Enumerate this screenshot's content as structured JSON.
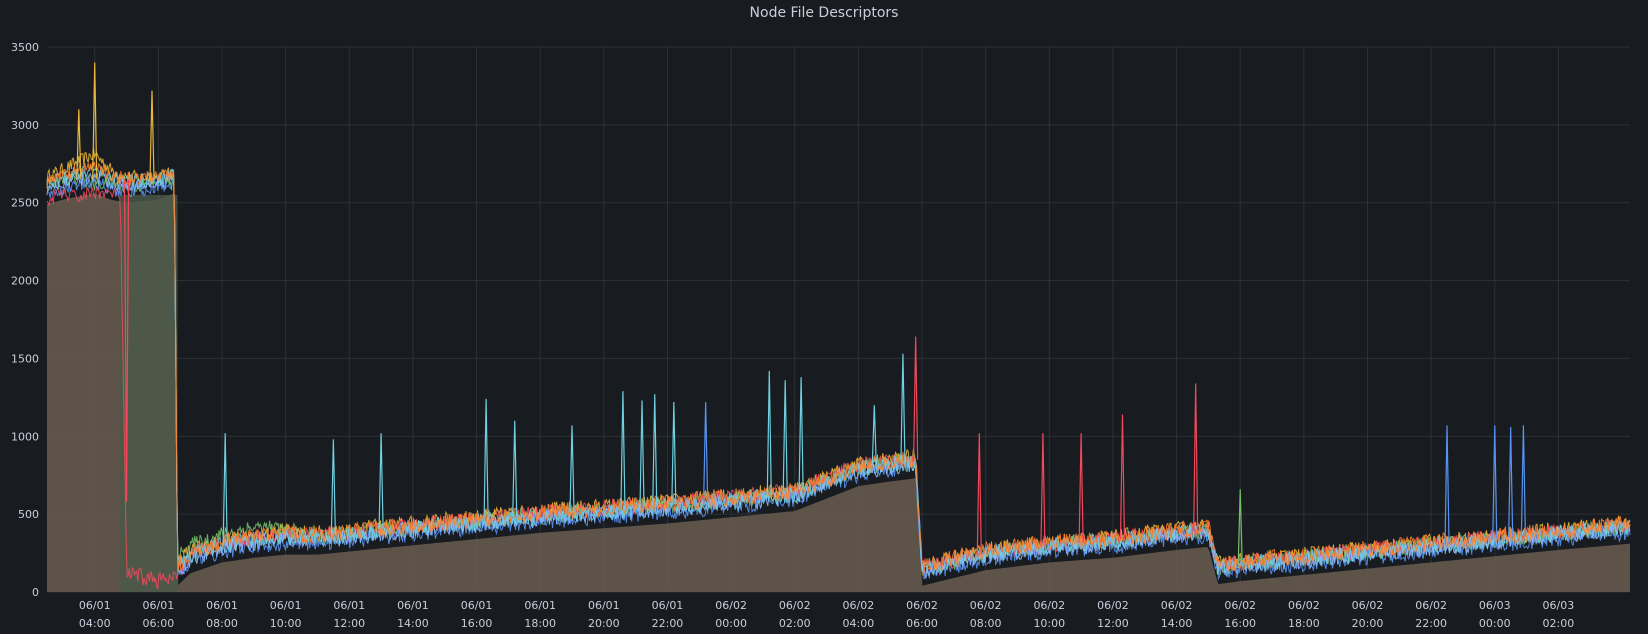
{
  "panel": {
    "title": "Node File Descriptors"
  },
  "chart_data": {
    "type": "line",
    "title": "Node File Descriptors",
    "xlabel": "",
    "ylabel": "",
    "ylim": [
      0,
      3500
    ],
    "y_ticks": [
      0,
      500,
      1000,
      1500,
      2000,
      2500,
      3000,
      3500
    ],
    "x_range_hours": [
      26.5,
      76.25
    ],
    "x_ticks": [
      {
        "hour": 28,
        "date": "06/01",
        "time": "04:00"
      },
      {
        "hour": 30,
        "date": "06/01",
        "time": "06:00"
      },
      {
        "hour": 32,
        "date": "06/01",
        "time": "08:00"
      },
      {
        "hour": 34,
        "date": "06/01",
        "time": "10:00"
      },
      {
        "hour": 36,
        "date": "06/01",
        "time": "12:00"
      },
      {
        "hour": 38,
        "date": "06/01",
        "time": "14:00"
      },
      {
        "hour": 40,
        "date": "06/01",
        "time": "16:00"
      },
      {
        "hour": 42,
        "date": "06/01",
        "time": "18:00"
      },
      {
        "hour": 44,
        "date": "06/01",
        "time": "20:00"
      },
      {
        "hour": 46,
        "date": "06/01",
        "time": "22:00"
      },
      {
        "hour": 48,
        "date": "06/02",
        "time": "00:00"
      },
      {
        "hour": 50,
        "date": "06/02",
        "time": "02:00"
      },
      {
        "hour": 52,
        "date": "06/02",
        "time": "04:00"
      },
      {
        "hour": 54,
        "date": "06/02",
        "time": "06:00"
      },
      {
        "hour": 56,
        "date": "06/02",
        "time": "08:00"
      },
      {
        "hour": 58,
        "date": "06/02",
        "time": "10:00"
      },
      {
        "hour": 60,
        "date": "06/02",
        "time": "12:00"
      },
      {
        "hour": 62,
        "date": "06/02",
        "time": "14:00"
      },
      {
        "hour": 64,
        "date": "06/02",
        "time": "16:00"
      },
      {
        "hour": 66,
        "date": "06/02",
        "time": "18:00"
      },
      {
        "hour": 68,
        "date": "06/02",
        "time": "20:00"
      },
      {
        "hour": 70,
        "date": "06/02",
        "time": "22:00"
      },
      {
        "hour": 72,
        "date": "06/03",
        "time": "00:00"
      },
      {
        "hour": 74,
        "date": "06/03",
        "time": "02:00"
      }
    ],
    "grid": true,
    "legend": "none",
    "colors": {
      "background": "#181b1f",
      "grid": "#2c3235",
      "fill": "#6a5d51",
      "fill_green": "#4b5a48"
    },
    "series": [
      {
        "color": "#eab839",
        "x": [
          26.5,
          27.0,
          27.5,
          28.0,
          28.5,
          29.0,
          29.5,
          30.0,
          30.5,
          30.6,
          31.0,
          32.0,
          33.0,
          34.0,
          35.0,
          36.0,
          38.0,
          40.0,
          42.0,
          44.0,
          46.0,
          48.0,
          50.0,
          51.0,
          52.0,
          53.0,
          53.8,
          54.0,
          55.0,
          56.0,
          58.0,
          60.0,
          62.0,
          63.0,
          63.3,
          64.0,
          66.0,
          68.0,
          70.0,
          72.0,
          74.0,
          76.25
        ],
        "y": [
          2650,
          2700,
          2750,
          2800,
          2700,
          2650,
          2650,
          2650,
          2680,
          180,
          250,
          300,
          320,
          380,
          360,
          380,
          420,
          460,
          500,
          530,
          560,
          600,
          640,
          720,
          800,
          830,
          850,
          150,
          200,
          250,
          300,
          330,
          380,
          400,
          160,
          180,
          220,
          260,
          300,
          340,
          380,
          420
        ]
      },
      {
        "color": "#73bf69",
        "x": [
          26.5,
          27.0,
          27.5,
          28.0,
          28.5,
          29.0,
          29.5,
          30.0,
          30.5,
          30.6,
          31.0,
          32.0,
          33.0,
          34.0,
          35.0,
          36.0,
          38.0,
          40.0,
          42.0,
          44.0,
          46.0,
          48.0,
          50.0,
          51.0,
          52.0,
          53.0,
          53.8,
          54.0,
          55.0,
          56.0,
          58.0,
          60.0,
          62.0,
          63.0,
          63.3,
          64.0,
          66.0,
          68.0,
          70.0,
          72.0,
          74.0,
          76.25
        ],
        "y": [
          2600,
          2620,
          2650,
          2600,
          2620,
          2580,
          2600,
          2620,
          2600,
          200,
          280,
          350,
          400,
          380,
          330,
          360,
          400,
          440,
          480,
          510,
          540,
          580,
          620,
          700,
          780,
          810,
          830,
          130,
          180,
          230,
          280,
          310,
          360,
          380,
          140,
          160,
          200,
          240,
          280,
          320,
          360,
          400
        ]
      },
      {
        "color": "#f2495c",
        "x": [
          26.5,
          27.0,
          27.5,
          28.0,
          28.5,
          28.8,
          29.0,
          29.5,
          30.0,
          30.5,
          31.0,
          32.0,
          33.0,
          34.0,
          35.0,
          36.0,
          38.0,
          40.0,
          42.0,
          44.0,
          46.0,
          48.0,
          50.0,
          51.0,
          52.0,
          53.0,
          53.8,
          54.0,
          55.0,
          56.0,
          58.0,
          60.0,
          62.0,
          63.0,
          63.3,
          64.0,
          66.0,
          68.0,
          70.0,
          72.0,
          74.0,
          76.25
        ],
        "y": [
          2500,
          2550,
          2520,
          2560,
          2540,
          2550,
          100,
          80,
          60,
          60,
          220,
          300,
          330,
          350,
          340,
          370,
          410,
          450,
          490,
          520,
          550,
          590,
          630,
          710,
          790,
          820,
          840,
          140,
          190,
          240,
          290,
          320,
          370,
          390,
          150,
          170,
          210,
          250,
          290,
          330,
          370,
          410
        ]
      },
      {
        "color": "#5794f2",
        "x": [
          26.5,
          27.0,
          27.5,
          28.0,
          28.5,
          29.0,
          29.5,
          30.0,
          30.5,
          30.6,
          31.0,
          32.0,
          33.0,
          34.0,
          35.0,
          36.0,
          38.0,
          40.0,
          42.0,
          44.0,
          46.0,
          48.0,
          50.0,
          51.0,
          52.0,
          53.0,
          53.8,
          54.0,
          55.0,
          56.0,
          58.0,
          60.0,
          62.0,
          63.0,
          63.3,
          64.0,
          66.0,
          68.0,
          70.0,
          72.0,
          74.0,
          76.25
        ],
        "y": [
          2550,
          2580,
          2600,
          2620,
          2580,
          2560,
          2570,
          2580,
          2620,
          100,
          180,
          250,
          280,
          300,
          300,
          320,
          360,
          400,
          440,
          470,
          500,
          540,
          580,
          660,
          740,
          770,
          790,
          100,
          150,
          200,
          250,
          280,
          330,
          350,
          110,
          130,
          170,
          210,
          250,
          290,
          330,
          370
        ]
      },
      {
        "color": "#8ab8ff",
        "x": [
          26.5,
          27.0,
          27.5,
          28.0,
          28.5,
          29.0,
          29.5,
          30.0,
          30.5,
          30.6,
          31.0,
          32.0,
          33.0,
          34.0,
          35.0,
          36.0,
          38.0,
          40.0,
          42.0,
          44.0,
          46.0,
          48.0,
          50.0,
          51.0,
          52.0,
          53.0,
          53.8,
          54.0,
          55.0,
          56.0,
          58.0,
          60.0,
          62.0,
          63.0,
          63.3,
          64.0,
          66.0,
          68.0,
          70.0,
          72.0,
          74.0,
          76.25
        ],
        "y": [
          2580,
          2620,
          2640,
          2660,
          2620,
          2600,
          2610,
          2620,
          2650,
          120,
          200,
          270,
          300,
          320,
          320,
          340,
          380,
          420,
          460,
          490,
          520,
          560,
          600,
          680,
          760,
          790,
          810,
          120,
          170,
          220,
          270,
          300,
          350,
          370,
          130,
          150,
          190,
          230,
          270,
          310,
          350,
          390
        ]
      },
      {
        "color": "#6ed0e0",
        "x": [
          26.5,
          27.0,
          27.5,
          28.0,
          28.5,
          29.0,
          29.5,
          30.0,
          30.5,
          30.6,
          31.0,
          32.0,
          33.0,
          34.0,
          35.0,
          36.0,
          38.0,
          40.0,
          42.0,
          44.0,
          46.0,
          48.0,
          50.0,
          51.0,
          52.0,
          53.0,
          53.8,
          54.0,
          55.0,
          56.0,
          58.0,
          60.0,
          62.0,
          63.0,
          63.3,
          64.0,
          66.0,
          68.0,
          70.0,
          72.0,
          74.0,
          76.25
        ],
        "y": [
          2600,
          2650,
          2680,
          2700,
          2650,
          2620,
          2630,
          2640,
          2660,
          150,
          220,
          290,
          320,
          340,
          330,
          350,
          390,
          430,
          470,
          500,
          530,
          570,
          610,
          690,
          770,
          800,
          820,
          130,
          180,
          230,
          280,
          310,
          360,
          380,
          140,
          160,
          200,
          240,
          280,
          320,
          360,
          400
        ]
      },
      {
        "color": "#ff7f2a",
        "x": [
          26.5,
          27.0,
          27.5,
          28.0,
          28.5,
          29.0,
          29.5,
          30.0,
          30.5,
          30.6,
          31.0,
          32.0,
          33.0,
          34.0,
          35.0,
          36.0,
          38.0,
          40.0,
          42.0,
          44.0,
          46.0,
          48.0,
          50.0,
          51.0,
          52.0,
          53.0,
          53.8,
          54.0,
          55.0,
          56.0,
          58.0,
          60.0,
          62.0,
          63.0,
          63.3,
          64.0,
          66.0,
          68.0,
          70.0,
          72.0,
          74.0,
          76.25
        ],
        "y": [
          2620,
          2660,
          2700,
          2720,
          2660,
          2640,
          2640,
          2650,
          2670,
          160,
          240,
          310,
          340,
          360,
          350,
          370,
          410,
          450,
          490,
          520,
          550,
          590,
          630,
          710,
          790,
          820,
          840,
          150,
          200,
          250,
          300,
          330,
          380,
          400,
          160,
          180,
          220,
          260,
          300,
          340,
          380,
          420
        ]
      }
    ],
    "annotations": [
      {
        "x": 28.0,
        "y": 3400,
        "color": "#eab839"
      },
      {
        "x": 29.8,
        "y": 3220,
        "color": "#eab839"
      },
      {
        "x": 27.5,
        "y": 3100,
        "color": "#eab839"
      },
      {
        "x": 29.0,
        "y": 580,
        "color": "#f2495c"
      },
      {
        "x": 32.1,
        "y": 1020,
        "color": "#6ed0e0"
      },
      {
        "x": 35.5,
        "y": 980,
        "color": "#6ed0e0"
      },
      {
        "x": 37.0,
        "y": 1020,
        "color": "#6ed0e0"
      },
      {
        "x": 40.3,
        "y": 1240,
        "color": "#6ed0e0"
      },
      {
        "x": 41.2,
        "y": 1100,
        "color": "#6ed0e0"
      },
      {
        "x": 43.0,
        "y": 1070,
        "color": "#6ed0e0"
      },
      {
        "x": 44.6,
        "y": 1290,
        "color": "#6ed0e0"
      },
      {
        "x": 45.2,
        "y": 1230,
        "color": "#6ed0e0"
      },
      {
        "x": 45.6,
        "y": 1270,
        "color": "#6ed0e0"
      },
      {
        "x": 46.2,
        "y": 1220,
        "color": "#6ed0e0"
      },
      {
        "x": 47.2,
        "y": 1220,
        "color": "#5794f2"
      },
      {
        "x": 49.2,
        "y": 1420,
        "color": "#6ed0e0"
      },
      {
        "x": 49.7,
        "y": 1360,
        "color": "#6ed0e0"
      },
      {
        "x": 50.2,
        "y": 1380,
        "color": "#6ed0e0"
      },
      {
        "x": 52.5,
        "y": 1200,
        "color": "#6ed0e0"
      },
      {
        "x": 53.4,
        "y": 1530,
        "color": "#6ed0e0"
      },
      {
        "x": 53.8,
        "y": 1640,
        "color": "#f2495c"
      },
      {
        "x": 55.8,
        "y": 1020,
        "color": "#f2495c"
      },
      {
        "x": 57.8,
        "y": 1020,
        "color": "#f2495c"
      },
      {
        "x": 59.0,
        "y": 1020,
        "color": "#f2495c"
      },
      {
        "x": 60.3,
        "y": 1140,
        "color": "#f2495c"
      },
      {
        "x": 62.6,
        "y": 1340,
        "color": "#f2495c"
      },
      {
        "x": 64.0,
        "y": 660,
        "color": "#73bf69"
      },
      {
        "x": 70.5,
        "y": 1070,
        "color": "#5794f2"
      },
      {
        "x": 72.0,
        "y": 1070,
        "color": "#5794f2"
      },
      {
        "x": 72.5,
        "y": 1060,
        "color": "#5794f2"
      },
      {
        "x": 72.9,
        "y": 1070,
        "color": "#5794f2"
      }
    ]
  }
}
